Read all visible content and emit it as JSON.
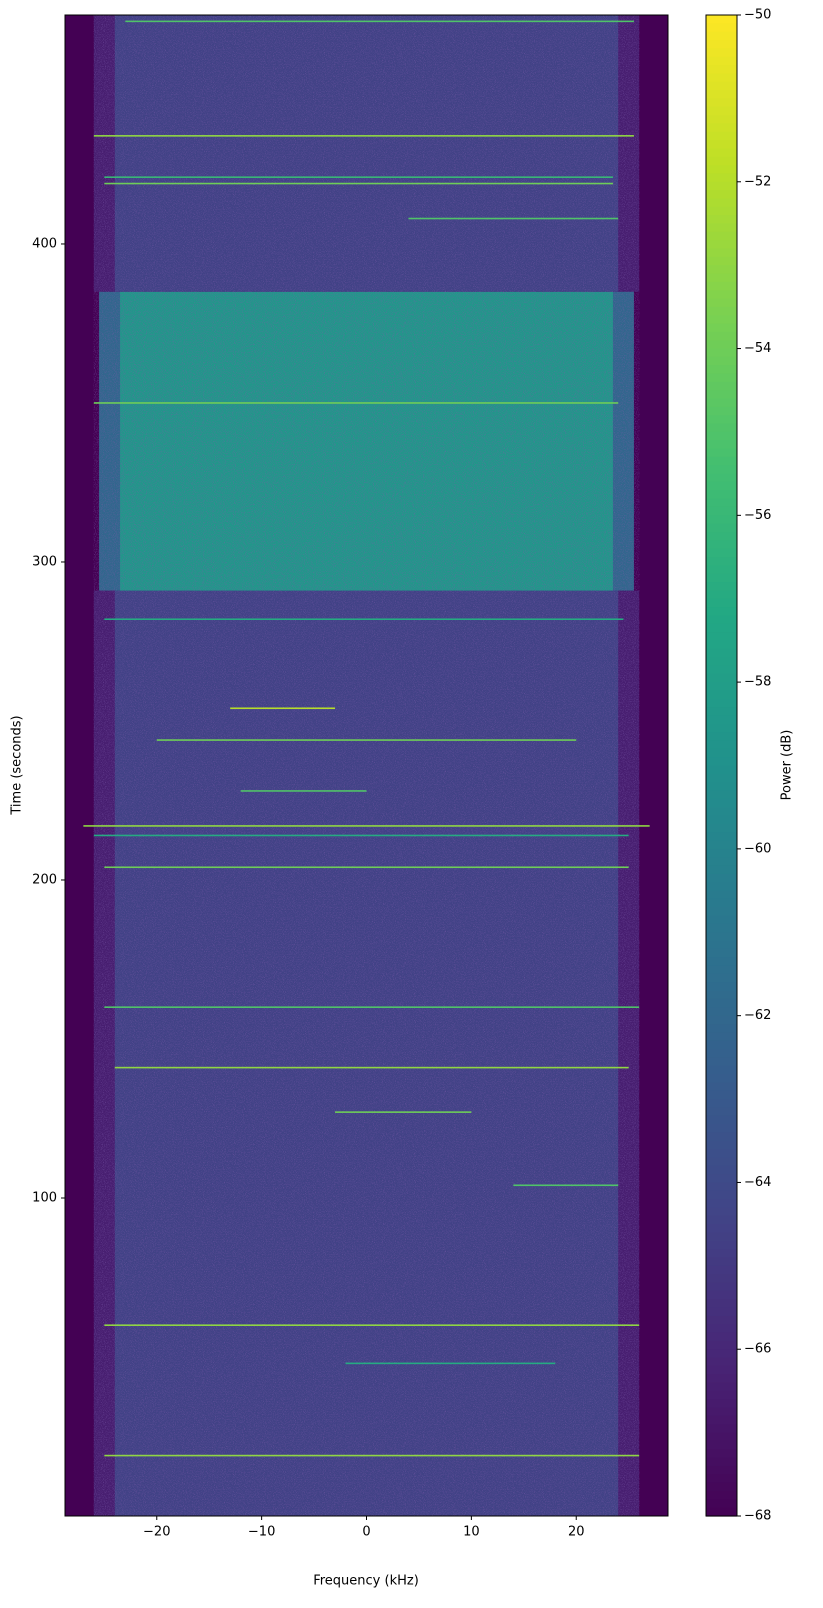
{
  "chart_data": {
    "type": "heatmap",
    "colormap": "viridis",
    "x_label": "Frequency (kHz)",
    "y_label": "Time (seconds)",
    "colorbar_label": "Power (dB)",
    "xlim": [
      -28.75,
      28.75
    ],
    "ylim": [
      0,
      472
    ],
    "xticks": [
      {
        "value": -20,
        "label": "−20"
      },
      {
        "value": -10,
        "label": "−10"
      },
      0,
      10,
      20
    ],
    "yticks": [
      100,
      200,
      300,
      400
    ],
    "clim": [
      -68,
      -50
    ],
    "cticks": [
      {
        "value": -68,
        "label": "−68"
      },
      {
        "value": -66,
        "label": "−66"
      },
      {
        "value": -64,
        "label": "−64"
      },
      {
        "value": -62,
        "label": "−62"
      },
      {
        "value": -60,
        "label": "−60"
      },
      {
        "value": -58,
        "label": "−58"
      },
      {
        "value": -56,
        "label": "−56"
      },
      {
        "value": -54,
        "label": "−54"
      },
      {
        "value": -52,
        "label": "−52"
      },
      {
        "value": -50,
        "label": "−50"
      }
    ],
    "regions": [
      {
        "t": [
          0,
          472
        ],
        "f": [
          -28.75,
          28.75
        ],
        "value": -68
      },
      {
        "t": [
          0,
          291
        ],
        "f": [
          -26,
          26
        ],
        "value": -66.5
      },
      {
        "t": [
          0,
          291
        ],
        "f": [
          -24,
          24
        ],
        "value": -64.5
      },
      {
        "t": [
          291,
          385
        ],
        "f": [
          -25.5,
          25.5
        ],
        "value": -62
      },
      {
        "t": [
          291,
          385
        ],
        "f": [
          -23.5,
          23.5
        ],
        "value": -58.5
      },
      {
        "t": [
          385,
          472
        ],
        "f": [
          -26,
          26
        ],
        "value": -66.5
      },
      {
        "t": [
          385,
          472
        ],
        "f": [
          -24,
          24
        ],
        "value": -64.5
      }
    ],
    "streaks": [
      {
        "t": 470,
        "f": [
          -23,
          25.5
        ],
        "value": -55
      },
      {
        "t": 434,
        "f": [
          -26,
          25.5
        ],
        "value": -53
      },
      {
        "t": 421,
        "f": [
          -25,
          23.5
        ],
        "value": -56
      },
      {
        "t": 419,
        "f": [
          -25,
          23.5
        ],
        "value": -54
      },
      {
        "t": 408,
        "f": [
          4,
          24
        ],
        "value": -55
      },
      {
        "t": 350,
        "f": [
          -26,
          24
        ],
        "value": -54
      },
      {
        "t": 282,
        "f": [
          -25,
          24.5
        ],
        "value": -57
      },
      {
        "t": 254,
        "f": [
          -13,
          -3
        ],
        "value": -52
      },
      {
        "t": 244,
        "f": [
          -20,
          20
        ],
        "value": -54
      },
      {
        "t": 228,
        "f": [
          -12,
          0
        ],
        "value": -55
      },
      {
        "t": 217,
        "f": [
          -27,
          27
        ],
        "value": -53
      },
      {
        "t": 214,
        "f": [
          -26,
          25
        ],
        "value": -57
      },
      {
        "t": 204,
        "f": [
          -25,
          25
        ],
        "value": -54
      },
      {
        "t": 160,
        "f": [
          -25,
          26
        ],
        "value": -55
      },
      {
        "t": 141,
        "f": [
          -24,
          25
        ],
        "value": -53
      },
      {
        "t": 127,
        "f": [
          -3,
          10
        ],
        "value": -54
      },
      {
        "t": 104,
        "f": [
          14,
          24
        ],
        "value": -55
      },
      {
        "t": 60,
        "f": [
          -25,
          26
        ],
        "value": -53
      },
      {
        "t": 48,
        "f": [
          -2,
          18
        ],
        "value": -57
      },
      {
        "t": 19,
        "f": [
          -25,
          26
        ],
        "value": -53
      }
    ]
  }
}
